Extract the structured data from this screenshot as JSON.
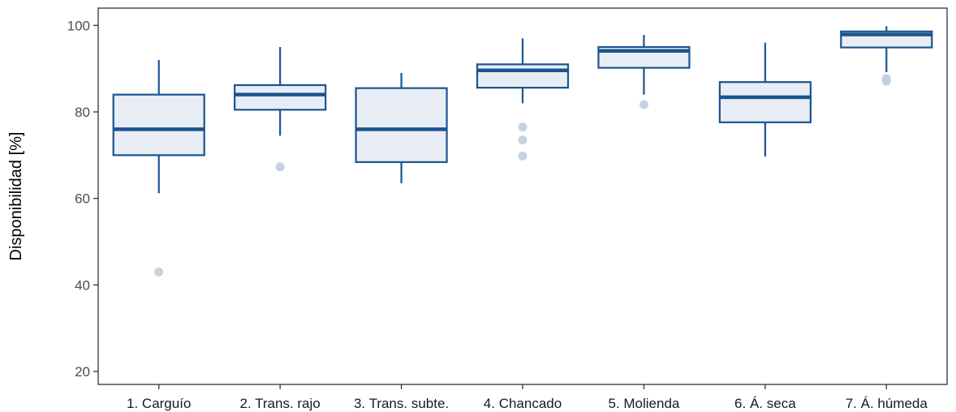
{
  "chart_data": {
    "type": "boxplot",
    "title": "",
    "xlabel": "",
    "ylabel": "Disponibilidad [%]",
    "ylim": [
      17,
      104
    ],
    "yticks": [
      20,
      40,
      60,
      80,
      100
    ],
    "grid": false,
    "legend": "none",
    "colors": {
      "box_stroke": "#1a5490",
      "box_fill": "#e8edf5",
      "outlier": "#c2d0e1",
      "frame": "#333333",
      "tick_text": "#4d4d4d"
    },
    "categories": [
      "1. Carguío",
      "2. Trans. rajo",
      "3. Trans. subte.",
      "4. Chancado",
      "5. Molienda",
      "6. Á. seca",
      "7. Á. húmeda"
    ],
    "boxes": [
      {
        "whisker_low": 61.2,
        "q1": 70.0,
        "median": 76.0,
        "q3": 84.0,
        "whisker_high": 92.0,
        "outliers": [
          43.0
        ]
      },
      {
        "whisker_low": 74.5,
        "q1": 80.5,
        "median": 84.0,
        "q3": 86.2,
        "whisker_high": 95.0,
        "outliers": [
          67.3
        ]
      },
      {
        "whisker_low": 63.5,
        "q1": 68.4,
        "median": 76.0,
        "q3": 85.5,
        "whisker_high": 89.0,
        "outliers": []
      },
      {
        "whisker_low": 82.0,
        "q1": 85.6,
        "median": 89.6,
        "q3": 91.0,
        "whisker_high": 97.0,
        "outliers": [
          76.5,
          73.5,
          69.8
        ]
      },
      {
        "whisker_low": 84.0,
        "q1": 90.2,
        "median": 94.1,
        "q3": 95.0,
        "whisker_high": 97.8,
        "outliers": [
          81.7
        ]
      },
      {
        "whisker_low": 69.7,
        "q1": 77.6,
        "median": 83.4,
        "q3": 86.9,
        "whisker_high": 96.0,
        "outliers": []
      },
      {
        "whisker_low": 89.2,
        "q1": 94.9,
        "median": 97.9,
        "q3": 98.6,
        "whisker_high": 99.8,
        "outliers": [
          87.7,
          87.1
        ]
      }
    ]
  }
}
